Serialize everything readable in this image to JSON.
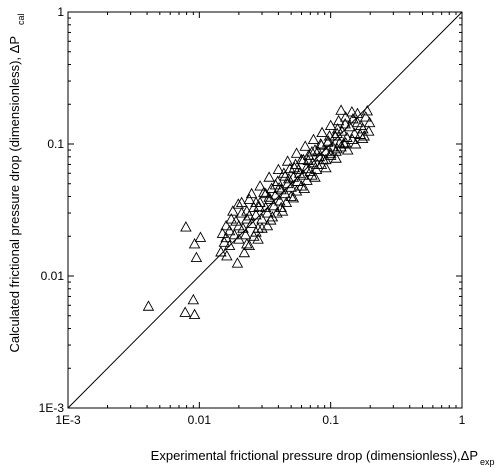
{
  "chart_data": {
    "type": "scatter",
    "title": "",
    "xlabel": {
      "text": "Experimental frictional pressure drop (dimensionless),ΔP",
      "subscript": "exp"
    },
    "ylabel": {
      "text": "Calculated frictional pressure drop (dimensionless), ΔP",
      "subscript": "cal"
    },
    "xscale": "log",
    "yscale": "log",
    "xlim": [
      0.001,
      1
    ],
    "ylim": [
      0.001,
      1
    ],
    "xticks": [
      0.001,
      0.01,
      0.1,
      1
    ],
    "xtick_labels": [
      "1E-3",
      "0.01",
      "0.1",
      "1"
    ],
    "yticks": [
      0.001,
      0.01,
      0.1,
      1
    ],
    "ytick_labels": [
      "1E-3",
      "0.01",
      "0.1",
      "1"
    ],
    "grid": false,
    "marker": "open-triangle",
    "reference_line": {
      "type": "y=x"
    },
    "series": [
      {
        "points": [
          [
            0.0041,
            0.0059
          ],
          [
            0.0078,
            0.0053
          ],
          [
            0.0092,
            0.0051
          ],
          [
            0.009,
            0.0066
          ],
          [
            0.0079,
            0.0235
          ],
          [
            0.0095,
            0.0138
          ],
          [
            0.0102,
            0.0196
          ],
          [
            0.0092,
            0.0175
          ],
          [
            0.0146,
            0.0152
          ],
          [
            0.0155,
            0.018
          ],
          [
            0.015,
            0.021
          ],
          [
            0.0162,
            0.0142
          ],
          [
            0.017,
            0.017
          ],
          [
            0.016,
            0.024
          ],
          [
            0.0175,
            0.027
          ],
          [
            0.0185,
            0.0205
          ],
          [
            0.0195,
            0.0125
          ],
          [
            0.02,
            0.019
          ],
          [
            0.0198,
            0.035
          ],
          [
            0.021,
            0.03
          ],
          [
            0.0215,
            0.023
          ],
          [
            0.0225,
            0.0205
          ],
          [
            0.023,
            0.027
          ],
          [
            0.024,
            0.038
          ],
          [
            0.025,
            0.025
          ],
          [
            0.026,
            0.033
          ],
          [
            0.027,
            0.029
          ],
          [
            0.028,
            0.023
          ],
          [
            0.029,
            0.036
          ],
          [
            0.03,
            0.027
          ],
          [
            0.031,
            0.043
          ],
          [
            0.032,
            0.033
          ],
          [
            0.033,
            0.03
          ],
          [
            0.0345,
            0.038
          ],
          [
            0.0355,
            0.046
          ],
          [
            0.037,
            0.034
          ],
          [
            0.038,
            0.041
          ],
          [
            0.0395,
            0.052
          ],
          [
            0.041,
            0.037
          ],
          [
            0.042,
            0.045
          ],
          [
            0.044,
            0.06
          ],
          [
            0.045,
            0.042
          ],
          [
            0.047,
            0.05
          ],
          [
            0.049,
            0.065
          ],
          [
            0.05,
            0.047
          ],
          [
            0.052,
            0.056
          ],
          [
            0.054,
            0.07
          ],
          [
            0.056,
            0.052
          ],
          [
            0.058,
            0.06
          ],
          [
            0.06,
            0.076
          ],
          [
            0.062,
            0.058
          ],
          [
            0.065,
            0.065
          ],
          [
            0.068,
            0.082
          ],
          [
            0.07,
            0.062
          ],
          [
            0.073,
            0.072
          ],
          [
            0.076,
            0.09
          ],
          [
            0.079,
            0.07
          ],
          [
            0.082,
            0.08
          ],
          [
            0.085,
            0.098
          ],
          [
            0.088,
            0.076
          ],
          [
            0.092,
            0.088
          ],
          [
            0.096,
            0.105
          ],
          [
            0.1,
            0.085
          ],
          [
            0.104,
            0.095
          ],
          [
            0.108,
            0.115
          ],
          [
            0.112,
            0.092
          ],
          [
            0.117,
            0.102
          ],
          [
            0.122,
            0.125
          ],
          [
            0.127,
            0.1
          ],
          [
            0.133,
            0.112
          ],
          [
            0.14,
            0.135
          ],
          [
            0.146,
            0.108
          ],
          [
            0.152,
            0.12
          ],
          [
            0.16,
            0.145
          ],
          [
            0.168,
            0.118
          ],
          [
            0.176,
            0.13
          ],
          [
            0.185,
            0.16
          ],
          [
            0.195,
            0.125
          ],
          [
            0.198,
            0.145
          ],
          [
            0.19,
            0.178
          ],
          [
            0.145,
            0.175
          ],
          [
            0.12,
            0.18
          ],
          [
            0.16,
            0.17
          ],
          [
            0.18,
            0.115
          ],
          [
            0.022,
            0.015
          ],
          [
            0.024,
            0.017
          ],
          [
            0.026,
            0.02
          ],
          [
            0.028,
            0.019
          ],
          [
            0.03,
            0.023
          ],
          [
            0.033,
            0.024
          ],
          [
            0.036,
            0.028
          ],
          [
            0.039,
            0.03
          ],
          [
            0.042,
            0.033
          ],
          [
            0.046,
            0.036
          ],
          [
            0.05,
            0.04
          ],
          [
            0.055,
            0.044
          ],
          [
            0.06,
            0.048
          ],
          [
            0.066,
            0.053
          ],
          [
            0.072,
            0.058
          ],
          [
            0.078,
            0.064
          ],
          [
            0.085,
            0.07
          ],
          [
            0.092,
            0.076
          ],
          [
            0.1,
            0.082
          ],
          [
            0.11,
            0.088
          ],
          [
            0.12,
            0.095
          ],
          [
            0.13,
            0.102
          ],
          [
            0.018,
            0.031
          ],
          [
            0.021,
            0.036
          ],
          [
            0.025,
            0.042
          ],
          [
            0.029,
            0.048
          ],
          [
            0.034,
            0.056
          ],
          [
            0.04,
            0.064
          ],
          [
            0.047,
            0.074
          ],
          [
            0.055,
            0.085
          ],
          [
            0.064,
            0.096
          ],
          [
            0.074,
            0.108
          ],
          [
            0.086,
            0.122
          ],
          [
            0.1,
            0.138
          ],
          [
            0.115,
            0.15
          ],
          [
            0.13,
            0.16
          ],
          [
            0.017,
            0.022
          ],
          [
            0.019,
            0.026
          ],
          [
            0.023,
            0.031
          ],
          [
            0.027,
            0.036
          ],
          [
            0.032,
            0.042
          ],
          [
            0.038,
            0.049
          ],
          [
            0.045,
            0.057
          ],
          [
            0.053,
            0.066
          ],
          [
            0.062,
            0.076
          ],
          [
            0.072,
            0.087
          ],
          [
            0.084,
            0.1
          ],
          [
            0.098,
            0.115
          ],
          [
            0.113,
            0.13
          ],
          [
            0.129,
            0.142
          ],
          [
            0.148,
            0.155
          ],
          [
            0.17,
            0.138
          ],
          [
            0.016,
            0.0195
          ],
          [
            0.02,
            0.024
          ],
          [
            0.024,
            0.0285
          ],
          [
            0.0285,
            0.0335
          ],
          [
            0.034,
            0.0395
          ],
          [
            0.0405,
            0.0465
          ],
          [
            0.048,
            0.0545
          ],
          [
            0.057,
            0.064
          ],
          [
            0.0675,
            0.075
          ],
          [
            0.08,
            0.088
          ],
          [
            0.095,
            0.103
          ],
          [
            0.112,
            0.12
          ],
          [
            0.023,
            0.0175
          ],
          [
            0.027,
            0.0215
          ],
          [
            0.035,
            0.0265
          ],
          [
            0.043,
            0.031
          ],
          [
            0.052,
            0.039
          ],
          [
            0.063,
            0.046
          ],
          [
            0.076,
            0.056
          ],
          [
            0.092,
            0.066
          ],
          [
            0.11,
            0.078
          ],
          [
            0.135,
            0.09
          ],
          [
            0.155,
            0.1
          ],
          [
            0.175,
            0.11
          ]
        ]
      }
    ]
  }
}
